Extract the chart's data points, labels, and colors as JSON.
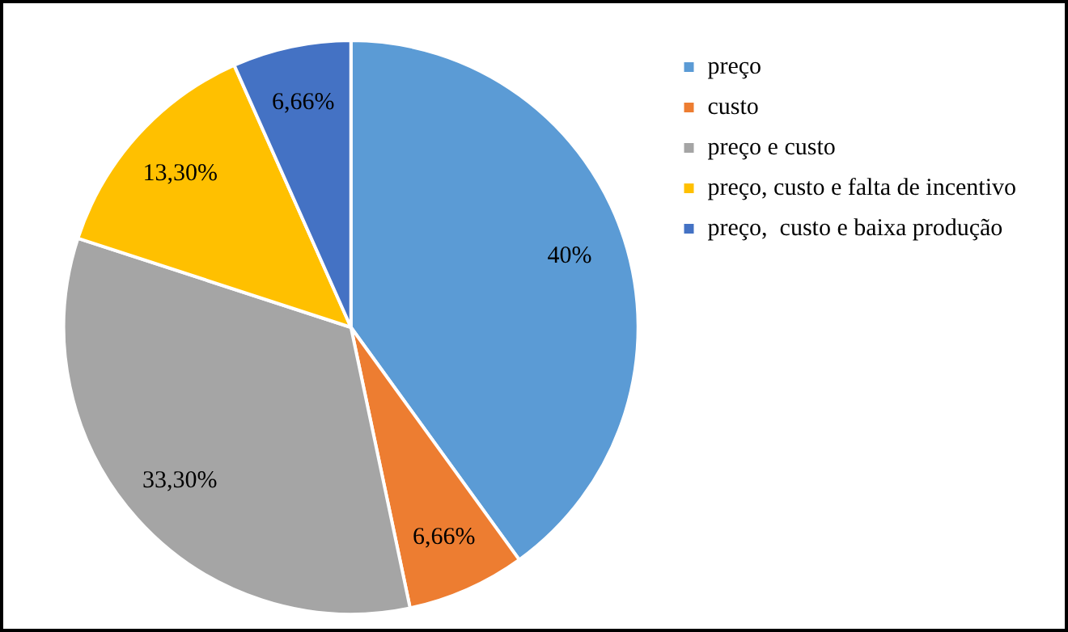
{
  "chart_data": {
    "type": "pie",
    "categories": [
      "preço",
      "custo",
      "preço e custo",
      "preço, custo e falta de incentivo",
      "preço,  custo e baixa produção"
    ],
    "values": [
      40,
      6.66,
      33.3,
      13.3,
      6.66
    ],
    "value_labels": [
      "40%",
      "6,66%",
      "33,30%",
      "13,30%",
      "6,66%"
    ],
    "colors": [
      "#5b9bd5",
      "#ed7d31",
      "#a5a5a5",
      "#ffc000",
      "#4472c4"
    ],
    "legend": "right"
  }
}
